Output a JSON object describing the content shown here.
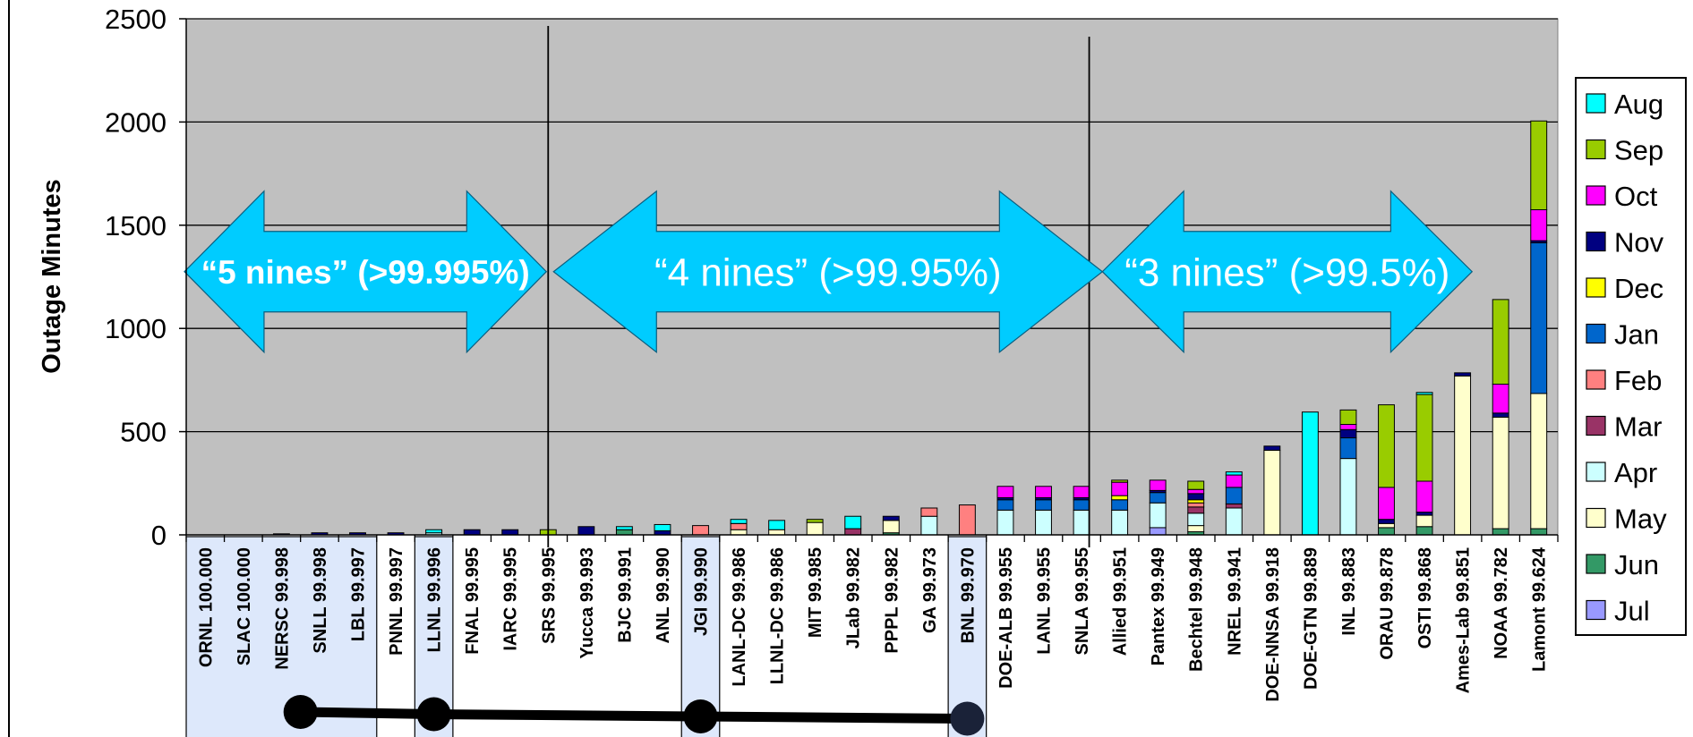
{
  "chart_data": {
    "type": "bar",
    "stacked": true,
    "ylabel": "Outage Minutes",
    "ylim": [
      0,
      2500
    ],
    "yticks": [
      "0",
      "500",
      "1000",
      "1500",
      "2000",
      "2500"
    ],
    "grid": true,
    "legend_position": "right",
    "categories": [
      "ORNL 100.000",
      "SLAC 100.000",
      "NERSC 99.998",
      "SNLL 99.998",
      "LBL 99.997",
      "PNNL 99.997",
      "LLNL 99.996",
      "FNAL 99.995",
      "IARC 99.995",
      "SRS 99.995",
      "Yucca 99.993",
      "BJC 99.991",
      "ANL 99.990",
      "JGI 99.990",
      "LANL-DC 99.986",
      "LLNL-DC 99.986",
      "MIT 99.985",
      "JLab 99.982",
      "PPPL 99.982",
      "GA 99.973",
      "BNL 99.970",
      "DOE-ALB 99.955",
      "LANL 99.955",
      "SNLA 99.955",
      "Allied 99.951",
      "Pantex 99.949",
      "Bechtel 99.948",
      "NREL 99.941",
      "DOE-NNSA 99.918",
      "DOE-GTN 99.889",
      "INL 99.883",
      "ORAU 99.878",
      "OSTI 99.868",
      "Ames-Lab 99.851",
      "NOAA 99.782",
      "Lamont 99.624"
    ],
    "series": [
      {
        "name": "Jul",
        "color": "#9999ff",
        "values": [
          0,
          0,
          0,
          0,
          0,
          0,
          0,
          0,
          0,
          0,
          0,
          0,
          0,
          0,
          0,
          0,
          0,
          0,
          0,
          0,
          0,
          0,
          0,
          0,
          0,
          35,
          0,
          0,
          0,
          0,
          0,
          0,
          0,
          0,
          0,
          0
        ]
      },
      {
        "name": "Jun",
        "color": "#339966",
        "values": [
          0,
          0,
          0,
          0,
          0,
          0,
          0,
          0,
          0,
          0,
          0,
          25,
          0,
          0,
          0,
          0,
          0,
          0,
          10,
          0,
          0,
          0,
          0,
          0,
          0,
          0,
          15,
          0,
          0,
          0,
          0,
          35,
          40,
          0,
          30,
          30
        ]
      },
      {
        "name": "May",
        "color": "#ffffcc",
        "values": [
          0,
          0,
          0,
          0,
          0,
          0,
          0,
          0,
          0,
          0,
          0,
          0,
          0,
          0,
          25,
          25,
          60,
          0,
          60,
          0,
          0,
          0,
          0,
          0,
          0,
          0,
          30,
          0,
          410,
          0,
          0,
          20,
          55,
          770,
          540,
          655
        ]
      },
      {
        "name": "Apr",
        "color": "#ccffff",
        "values": [
          0,
          0,
          0,
          0,
          0,
          0,
          10,
          0,
          0,
          0,
          0,
          0,
          0,
          0,
          0,
          0,
          0,
          0,
          0,
          90,
          0,
          120,
          120,
          120,
          120,
          120,
          60,
          130,
          0,
          0,
          370,
          0,
          0,
          0,
          0,
          0
        ]
      },
      {
        "name": "Mar",
        "color": "#993366",
        "values": [
          0,
          0,
          0,
          0,
          0,
          0,
          0,
          0,
          0,
          0,
          0,
          0,
          0,
          0,
          0,
          0,
          0,
          30,
          0,
          0,
          0,
          0,
          0,
          0,
          0,
          0,
          30,
          20,
          0,
          0,
          0,
          0,
          0,
          0,
          0,
          0
        ]
      },
      {
        "name": "Feb",
        "color": "#ff8080",
        "values": [
          0,
          0,
          0,
          0,
          0,
          0,
          0,
          0,
          0,
          0,
          0,
          0,
          0,
          45,
          30,
          0,
          0,
          0,
          0,
          40,
          145,
          0,
          0,
          0,
          0,
          0,
          20,
          0,
          0,
          0,
          0,
          0,
          0,
          0,
          0,
          0
        ]
      },
      {
        "name": "Jan",
        "color": "#0066cc",
        "values": [
          0,
          0,
          0,
          0,
          0,
          0,
          0,
          0,
          0,
          0,
          0,
          0,
          0,
          0,
          0,
          0,
          0,
          0,
          0,
          0,
          0,
          50,
          50,
          50,
          50,
          50,
          0,
          80,
          0,
          0,
          100,
          0,
          0,
          0,
          0,
          730
        ]
      },
      {
        "name": "Dec",
        "color": "#ffff00",
        "values": [
          0,
          0,
          0,
          0,
          0,
          0,
          0,
          0,
          0,
          0,
          0,
          0,
          0,
          0,
          0,
          0,
          0,
          0,
          0,
          0,
          0,
          0,
          0,
          0,
          20,
          0,
          15,
          0,
          0,
          0,
          0,
          0,
          0,
          0,
          0,
          0
        ]
      },
      {
        "name": "Nov",
        "color": "#000080",
        "values": [
          0,
          0,
          5,
          10,
          10,
          10,
          0,
          25,
          25,
          0,
          40,
          0,
          20,
          0,
          0,
          0,
          0,
          0,
          20,
          0,
          0,
          10,
          10,
          10,
          0,
          10,
          30,
          0,
          20,
          0,
          40,
          20,
          15,
          15,
          20,
          10
        ]
      },
      {
        "name": "Oct",
        "color": "#ff00ff",
        "values": [
          0,
          0,
          0,
          0,
          0,
          0,
          0,
          0,
          0,
          0,
          0,
          0,
          0,
          0,
          0,
          0,
          0,
          0,
          0,
          0,
          0,
          55,
          55,
          55,
          65,
          50,
          20,
          60,
          0,
          0,
          25,
          155,
          150,
          0,
          140,
          150
        ]
      },
      {
        "name": "Sep",
        "color": "#99cc00",
        "values": [
          0,
          0,
          0,
          0,
          0,
          0,
          0,
          0,
          0,
          25,
          0,
          0,
          0,
          0,
          0,
          0,
          15,
          0,
          0,
          0,
          0,
          0,
          0,
          0,
          10,
          0,
          40,
          0,
          0,
          0,
          70,
          400,
          420,
          0,
          410,
          430
        ]
      },
      {
        "name": "Aug",
        "color": "#00ffff",
        "values": [
          0,
          0,
          0,
          0,
          0,
          0,
          15,
          0,
          0,
          0,
          0,
          15,
          30,
          0,
          20,
          45,
          0,
          60,
          0,
          0,
          0,
          0,
          0,
          0,
          0,
          0,
          0,
          15,
          0,
          595,
          0,
          0,
          10,
          0,
          0,
          0
        ]
      }
    ],
    "legend_order": [
      "Aug",
      "Sep",
      "Oct",
      "Nov",
      "Dec",
      "Jan",
      "Feb",
      "Mar",
      "Apr",
      "May",
      "Jun",
      "Jul"
    ],
    "annotations": [
      {
        "text": "“5 nines” (>99.995%)",
        "from_category": 0,
        "to_category": 9,
        "style": "bold"
      },
      {
        "text": "“4 nines” (>99.95%)",
        "from_category": 9,
        "to_category": 23,
        "style": "normal"
      },
      {
        "text": "“3 nines” (>99.5%)",
        "from_category": 24,
        "to_category": 34,
        "style": "normal"
      }
    ],
    "divider_after_categories": [
      9,
      23
    ],
    "highlighted_groups": [
      [
        0,
        4
      ],
      [
        6,
        6
      ],
      [
        13,
        13
      ],
      [
        20,
        20
      ]
    ],
    "connector_points_categories": [
      2.5,
      6,
      13,
      20
    ]
  }
}
